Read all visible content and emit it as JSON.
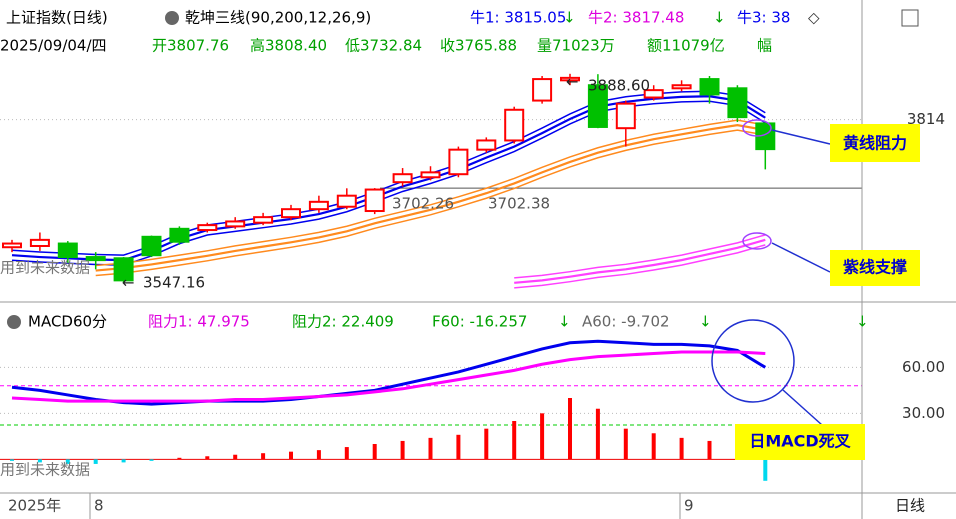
{
  "header": {
    "title": "上证指数(日线)",
    "indicator": "乾坤三线(90,200,12,26,9)",
    "bull1": "牛1: 3815.05",
    "bull2": "牛2: 3817.48",
    "bull3": "牛3: 38",
    "arrow": "↓",
    "diamond": "◇",
    "date": "2025/09/04/四",
    "open": "开3807.76",
    "high": "高3808.40",
    "low": "低3732.84",
    "close": "收3765.88",
    "volume": "量71023万",
    "amount": "额11079亿",
    "range": "幅"
  },
  "chart_data": [
    {
      "type": "candlestick",
      "categories": [
        null,
        null,
        null,
        null,
        null,
        null,
        null,
        null,
        null,
        null,
        null,
        null,
        null,
        null,
        null,
        null,
        null,
        null,
        null,
        null,
        null,
        null,
        null,
        null,
        null,
        null,
        null,
        null
      ],
      "open": [
        3606,
        3608,
        3612,
        3590,
        3588,
        3623,
        3636,
        3634,
        3640,
        3646,
        3655,
        3668,
        3672,
        3665,
        3712,
        3720,
        3725,
        3765,
        3780,
        3845,
        3878,
        3870,
        3800,
        3850,
        3865,
        3880,
        3865,
        3807.76
      ],
      "high": [
        3618,
        3630,
        3616,
        3598,
        3590,
        3625,
        3640,
        3646,
        3655,
        3662,
        3675,
        3690,
        3702,
        3702.38,
        3735,
        3738,
        3770,
        3785,
        3835,
        3885,
        3888.6,
        3888,
        3845,
        3870,
        3878,
        3885,
        3870,
        3808.4
      ],
      "low": [
        3598,
        3600,
        3580,
        3570,
        3547.16,
        3590,
        3610,
        3630,
        3636,
        3642,
        3650,
        3662,
        3668,
        3660,
        3705,
        3715,
        3720,
        3760,
        3775,
        3840,
        3870,
        3800,
        3770,
        3845,
        3860,
        3840,
        3810,
        3732.84
      ],
      "close": [
        3612,
        3618,
        3590,
        3585,
        3552,
        3593,
        3615,
        3642,
        3648,
        3655,
        3668,
        3680,
        3690,
        3700,
        3725,
        3728,
        3765,
        3780,
        3830,
        3880,
        3882,
        3802,
        3840,
        3862,
        3870,
        3855,
        3818,
        3765.88
      ],
      "up_color": "#ff0000",
      "down_color": "#00c000",
      "ylim": [
        3520,
        3960
      ],
      "yticks": [
        3814
      ],
      "ref_line": 3702.38,
      "series": [
        {
          "color": "#0000ee",
          "values": [
            3593,
            3590,
            3588,
            3586,
            3585,
            3600,
            3620,
            3634,
            3640,
            3646,
            3652,
            3660,
            3672,
            3688,
            3705,
            3718,
            3733,
            3752,
            3770,
            3792,
            3815,
            3835,
            3843,
            3848,
            3851,
            3852,
            3845,
            3817
          ]
        },
        {
          "color": "#ff8a1e",
          "values": [
            null,
            null,
            null,
            3568,
            3572,
            3578,
            3585,
            3592,
            3600,
            3607,
            3614,
            3622,
            3632,
            3645,
            3656,
            3667,
            3680,
            3694,
            3710,
            3728,
            3745,
            3760,
            3772,
            3782,
            3790,
            3798,
            3805,
            3797
          ]
        },
        {
          "color": "#ff40ff",
          "values": [
            null,
            null,
            null,
            null,
            null,
            null,
            null,
            null,
            null,
            null,
            null,
            null,
            null,
            null,
            null,
            null,
            null,
            null,
            3548,
            3552,
            3558,
            3565,
            3570,
            3577,
            3585,
            3595,
            3605,
            3618
          ]
        }
      ],
      "annotations": {
        "peak": "3888.60",
        "mid1": "3702.26",
        "mid2": "3702.38",
        "trough": "3547.16",
        "arrow": "←"
      }
    },
    {
      "type": "line",
      "legend": "MACD60分",
      "resist1": "阻力1: 47.975",
      "resist2": "阻力2: 22.409",
      "f60": "F60: -16.257",
      "a60": "A60: -9.702",
      "ylim": [
        -20,
        100
      ],
      "yticks": [
        {
          "value": 60,
          "label": "60.00"
        },
        {
          "value": 30,
          "label": "30.00"
        }
      ],
      "hlines": [
        {
          "value": 47.975,
          "color": "#ff00ff"
        },
        {
          "value": 22.409,
          "color": "#00cc00"
        }
      ],
      "series": [
        {
          "color": "#0000ee",
          "values": [
            47,
            45,
            42,
            39,
            37,
            36,
            37,
            38,
            38,
            38,
            39,
            41,
            43,
            45,
            49,
            53,
            57,
            62,
            67,
            72,
            76,
            77,
            76,
            75,
            75,
            74,
            71,
            60
          ]
        },
        {
          "color": "#ff00ff",
          "values": [
            40,
            39,
            38,
            38,
            38,
            38,
            38,
            38,
            39,
            39,
            40,
            41,
            42,
            44,
            46,
            49,
            52,
            55,
            58,
            62,
            65,
            67,
            68,
            69,
            70,
            70,
            70,
            69
          ]
        }
      ],
      "bars": [
        -1,
        -2,
        -3,
        -3,
        -2,
        -1,
        1,
        2,
        3,
        4,
        5,
        6,
        8,
        10,
        12,
        14,
        16,
        20,
        25,
        30,
        40,
        33,
        20,
        17,
        14,
        12,
        5,
        -14
      ],
      "bar_colors": {
        "up": "#ff0000",
        "down": "#00d8ee"
      }
    }
  ],
  "labels": {
    "yellow_resist": "黄线阻力",
    "purple_support": "紫线支撑",
    "macd_cross": "日MACD死叉",
    "future": "用到未来数据"
  },
  "x_axis": {
    "year": "2025年",
    "months": [
      "8",
      "9"
    ],
    "period": "日线"
  }
}
